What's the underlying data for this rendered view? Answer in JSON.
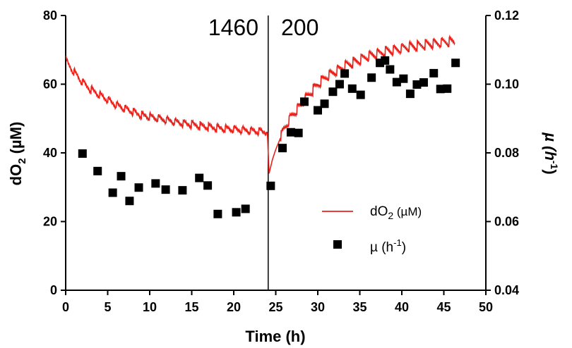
{
  "chart_data": {
    "type": "line+scatter",
    "xlabel": "Time (h)",
    "ylabel_left": "dO2 (µM)",
    "ylabel_right": "µ (h-1)",
    "xlim": [
      0,
      50
    ],
    "ylim_left": [
      0,
      80
    ],
    "ylim_right": [
      0.04,
      0.12
    ],
    "x_ticks": [
      "0",
      "5",
      "10",
      "15",
      "20",
      "25",
      "30",
      "35",
      "40",
      "45",
      "50"
    ],
    "y_left_ticks": [
      "0",
      "20",
      "40",
      "60",
      "80"
    ],
    "y_right_ticks": [
      "0.04",
      "0.06",
      "0.08",
      "0.10",
      "0.12"
    ],
    "grid": false,
    "legend_position": "lower-right",
    "annotations": [
      {
        "text": "1460",
        "side": "left of divider"
      },
      {
        "text": "200",
        "side": "right of divider"
      }
    ],
    "divider_x": 24.1,
    "series": [
      {
        "name": "dO2 (µM)",
        "axis": "left",
        "style": "line",
        "color": "#e8221b",
        "x": [
          0,
          0.5,
          1,
          1.5,
          2,
          2.5,
          3,
          4,
          5,
          6,
          7,
          8,
          9,
          10,
          11,
          12,
          13,
          14,
          15,
          16,
          17,
          18,
          19,
          20,
          21,
          22,
          23,
          24.0,
          24.2,
          24.6,
          25,
          25.5,
          26,
          27,
          28,
          29,
          30,
          31,
          32,
          33,
          34,
          35,
          36,
          37,
          38,
          39,
          40,
          41,
          42,
          43,
          44,
          45,
          46,
          46.3
        ],
        "y": [
          67,
          65,
          63.5,
          62,
          60.5,
          59.5,
          58.5,
          57,
          55.5,
          54,
          53,
          52,
          51,
          50.5,
          50,
          49.5,
          49,
          48.5,
          48.2,
          47.8,
          47.5,
          47.2,
          47,
          46.8,
          46.6,
          46.4,
          46.2,
          46,
          34,
          38,
          41,
          44,
          47,
          51,
          54,
          57,
          60,
          62,
          63.5,
          65,
          66,
          67,
          68,
          68.8,
          69.5,
          70,
          70.5,
          71,
          71.3,
          71.6,
          72,
          72.3,
          72.5,
          72.6
        ]
      },
      {
        "name": "µ (h-1)",
        "axis": "right",
        "style": "square-markers",
        "color": "#000000",
        "x": [
          2,
          3.8,
          5.6,
          6.6,
          7.6,
          8.7,
          10.7,
          11.9,
          13.9,
          15.9,
          16.9,
          18.1,
          20.3,
          21.4,
          24.4,
          25.8,
          26.8,
          27.7,
          28.4,
          30.0,
          30.8,
          31.8,
          32.6,
          33.2,
          34.1,
          35.1,
          36.4,
          37.4,
          38.0,
          38.6,
          39.4,
          40.2,
          41.0,
          41.8,
          42.6,
          43.8,
          44.6,
          45.4,
          46.4
        ],
        "y": [
          0.0798,
          0.0747,
          0.0684,
          0.0732,
          0.066,
          0.0699,
          0.0711,
          0.0693,
          0.0691,
          0.0727,
          0.0705,
          0.0622,
          0.0627,
          0.0637,
          0.0704,
          0.0814,
          0.086,
          0.0858,
          0.0949,
          0.0924,
          0.0943,
          0.0978,
          0.1,
          0.1031,
          0.0987,
          0.0969,
          0.1019,
          0.1062,
          0.1069,
          0.1043,
          0.1006,
          0.1016,
          0.0972,
          0.0999,
          0.1005,
          0.1032,
          0.0986,
          0.0987,
          0.1062
        ]
      }
    ],
    "legend": [
      {
        "label_main": "dO",
        "label_sub": "2",
        "label_unit": " (µM)",
        "style": "line"
      },
      {
        "label_main": "µ (h",
        "label_sup": "-1",
        "label_unit": ")",
        "style": "square"
      }
    ]
  }
}
